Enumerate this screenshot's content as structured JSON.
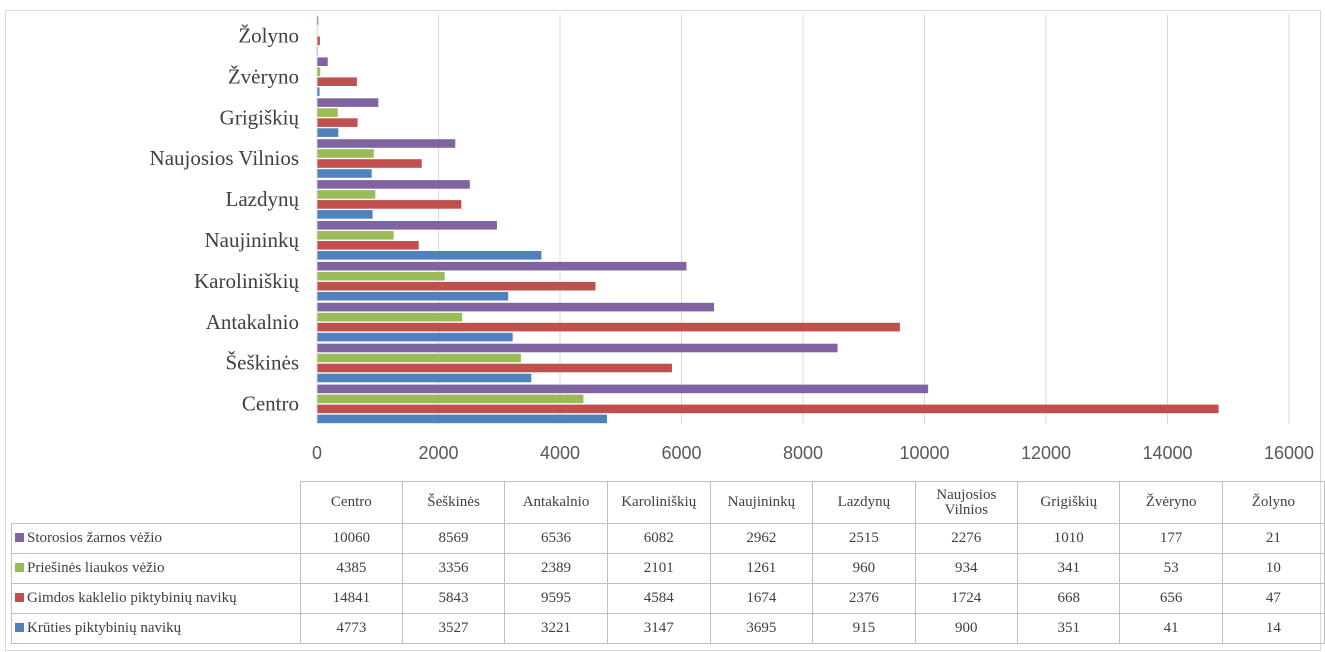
{
  "chart_data": {
    "type": "bar",
    "orientation": "horizontal",
    "categories": [
      "Centro",
      "Šeškinės",
      "Antakalnio",
      "Karoliniškių",
      "Naujininkų",
      "Lazdynų",
      "Naujosios Vilnios",
      "Grigiškių",
      "Žvėryno",
      "Žolyno"
    ],
    "table_headers": [
      "Centro",
      "Šeškinės",
      "Antakalnio",
      "Karoliniškių",
      "Naujininkų",
      "Lazdynų",
      "Naujosios\nVilnios",
      "Grigiškių",
      "Žvėryno",
      "Žolyno"
    ],
    "series": [
      {
        "name": "Storosios žarnos vėžio",
        "color": "#8064a2",
        "values": [
          10060,
          8569,
          6536,
          6082,
          2962,
          2515,
          2276,
          1010,
          177,
          21
        ]
      },
      {
        "name": "Priešinės liaukos vėžio",
        "color": "#9bbb59",
        "values": [
          4385,
          3356,
          2389,
          2101,
          1261,
          960,
          934,
          341,
          53,
          10
        ]
      },
      {
        "name": "Gimdos kaklelio piktybinių navikų",
        "color": "#c0504d",
        "values": [
          14841,
          5843,
          9595,
          4584,
          1674,
          2376,
          1724,
          668,
          656,
          47
        ]
      },
      {
        "name": "Krūties piktybinių navikų",
        "color": "#4f81bd",
        "values": [
          4773,
          3527,
          3221,
          3147,
          3695,
          915,
          900,
          351,
          41,
          14
        ]
      }
    ],
    "x_ticks": [
      0,
      2000,
      4000,
      6000,
      8000,
      10000,
      12000,
      14000,
      16000
    ],
    "xlim": [
      0,
      16000
    ],
    "grid": true,
    "legend": "data-table"
  }
}
